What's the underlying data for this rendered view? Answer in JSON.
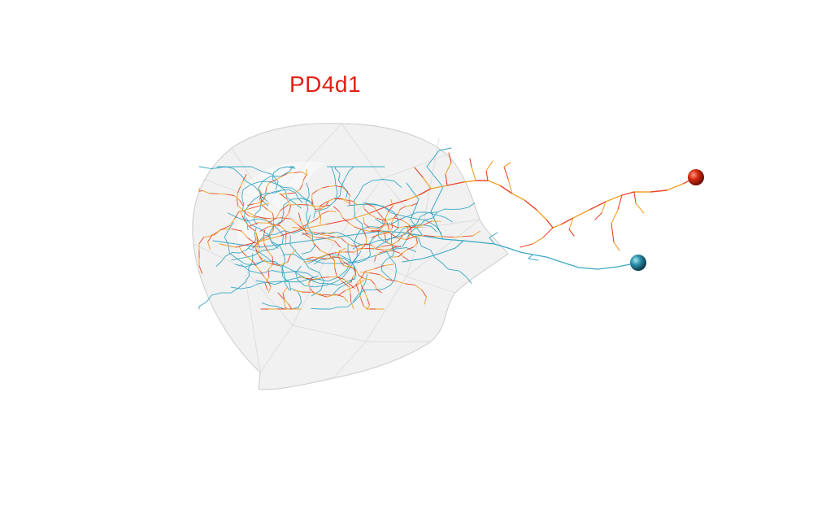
{
  "title": "PD4d1",
  "colors": {
    "title": "#e02010",
    "neuron_red": "#e8452a",
    "neuron_orange": "#f0a028",
    "neuron_blue": "#3aa8c4",
    "soma_red": "#d42a10",
    "soma_blue": "#2a8fab",
    "neuropil_fill": "#e8e8e8",
    "neuropil_stroke": "#c8c8c8"
  },
  "legend": [
    {
      "name": "red-neuron",
      "color": "#e8452a"
    },
    {
      "name": "blue-neuron",
      "color": "#3aa8c4"
    }
  ]
}
